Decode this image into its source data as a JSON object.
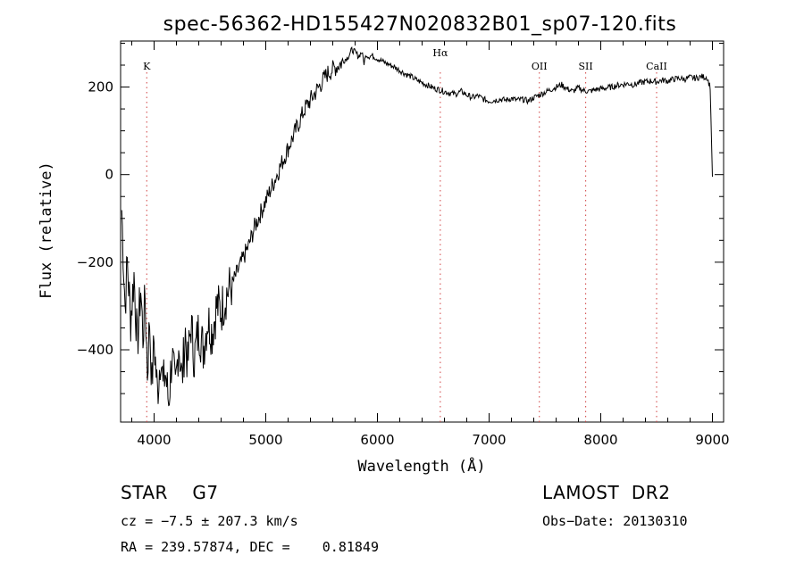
{
  "chart_data": {
    "type": "line",
    "title": "spec-56362-HD155427N020832B01_sp07-120.fits",
    "xlabel": "Wavelength (Å)",
    "ylabel": "Flux (relative)",
    "xlim": [
      3700,
      9100
    ],
    "ylim": [
      -565,
      305
    ],
    "xticks": [
      4000,
      5000,
      6000,
      7000,
      8000,
      9000
    ],
    "yticks": [
      -400,
      -200,
      0,
      200
    ],
    "grid": false,
    "series": [
      {
        "x": [
          3710,
          3740,
          3760,
          3790,
          3820,
          3850,
          3880,
          3900,
          3920,
          3940,
          3960,
          3980,
          4000,
          4030,
          4060,
          4080,
          4100,
          4130,
          4160,
          4190,
          4220,
          4250,
          4280,
          4300,
          4330,
          4360,
          4400,
          4440,
          4480,
          4520,
          4560,
          4600,
          4650,
          4700,
          4750,
          4800,
          4850,
          4900,
          4950,
          5000,
          5050,
          5100,
          5150,
          5200,
          5250,
          5300,
          5350,
          5400,
          5450,
          5500,
          5550,
          5600,
          5650,
          5700,
          5740,
          5770,
          5800,
          5830,
          5860,
          5880,
          5900,
          5920,
          5950,
          6000,
          6050,
          6100,
          6150,
          6200,
          6250,
          6300,
          6350,
          6400,
          6450,
          6500,
          6550,
          6600,
          6650,
          6700,
          6750,
          6800,
          6850,
          6900,
          6950,
          7000,
          7050,
          7100,
          7150,
          7200,
          7250,
          7300,
          7350,
          7400,
          7450,
          7500,
          7550,
          7600,
          7650,
          7700,
          7750,
          7800,
          7850,
          7900,
          7950,
          8000,
          8050,
          8100,
          8150,
          8200,
          8250,
          8300,
          8350,
          8400,
          8450,
          8500,
          8550,
          8600,
          8650,
          8700,
          8750,
          8800,
          8850,
          8900,
          8950,
          8980,
          9000
        ],
        "values": [
          -80,
          -300,
          -200,
          -330,
          -230,
          -390,
          -260,
          -370,
          -280,
          -450,
          -330,
          -480,
          -380,
          -500,
          -400,
          -490,
          -450,
          -520,
          -410,
          -500,
          -380,
          -470,
          -360,
          -440,
          -340,
          -420,
          -350,
          -400,
          -330,
          -360,
          -300,
          -310,
          -270,
          -250,
          -220,
          -190,
          -160,
          -120,
          -90,
          -60,
          -30,
          0,
          30,
          60,
          90,
          120,
          150,
          170,
          190,
          210,
          230,
          240,
          250,
          260,
          270,
          285,
          280,
          270,
          280,
          255,
          275,
          270,
          272,
          265,
          258,
          252,
          246,
          238,
          230,
          224,
          216,
          210,
          204,
          198,
          194,
          190,
          186,
          184,
          190,
          182,
          176,
          180,
          172,
          168,
          170,
          172,
          170,
          174,
          170,
          172,
          168,
          176,
          182,
          188,
          194,
          200,
          205,
          196,
          190,
          198,
          192,
          190,
          194,
          196,
          198,
          200,
          204,
          206,
          208,
          205,
          210,
          212,
          214,
          212,
          216,
          214,
          218,
          220,
          218,
          222,
          220,
          224,
          222,
          200,
          -5
        ]
      }
    ],
    "annotations": [
      {
        "label": "K",
        "x": 3934
      },
      {
        "label": "Hα",
        "x": 6563
      },
      {
        "label": "OII",
        "x": 7450
      },
      {
        "label": "SII",
        "x": 7865
      },
      {
        "label": "CaII",
        "x": 8500
      }
    ]
  },
  "info": {
    "class": "STAR    G7",
    "cz": "cz = −7.5 ± 207.3 km/s",
    "coords": "RA = 239.57874, DEC =    0.81849",
    "survey": "LAMOST  DR2",
    "obsdate": "Obs−Date: 20130310"
  },
  "colors": {
    "line": "#000000",
    "annotation": "#d04040"
  }
}
